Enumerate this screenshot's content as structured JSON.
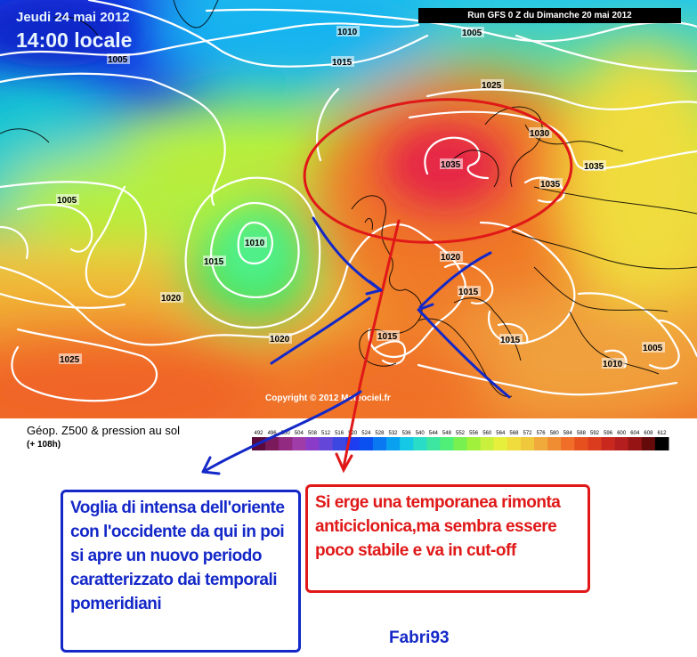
{
  "header": {
    "date": "Jeudi 24 mai 2012",
    "time": "14:00 locale",
    "run_banner": "Run GFS 0 Z du Dimanche 20 mai 2012"
  },
  "map": {
    "copyright": "Copyright © 2012 Meteociel.fr",
    "isobar_labels": [
      "1005",
      "1010",
      "1005",
      "1015",
      "1025",
      "1030",
      "1035",
      "1035",
      "1035",
      "1005",
      "1010",
      "1015",
      "1020",
      "1020",
      "1015",
      "1015",
      "1015",
      "1020",
      "1025",
      "1015",
      "1010",
      "1005"
    ]
  },
  "legend": {
    "title": "Géop. Z500 & pression au sol",
    "forecast_hour": "(+ 108h)",
    "scale_values": [
      "492",
      "496",
      "500",
      "504",
      "508",
      "512",
      "516",
      "520",
      "524",
      "528",
      "532",
      "536",
      "540",
      "544",
      "548",
      "552",
      "556",
      "560",
      "564",
      "568",
      "572",
      "576",
      "580",
      "584",
      "588",
      "592",
      "596",
      "600",
      "604",
      "608",
      "612"
    ],
    "scale_colors": [
      "#5a0a3a",
      "#7a1a5a",
      "#922a82",
      "#a03ca8",
      "#8a3cc8",
      "#6446d8",
      "#3c46e0",
      "#1e3cf0",
      "#0a50f0",
      "#0a78f0",
      "#0aa0f0",
      "#14c8e6",
      "#28dcc8",
      "#3ce6a0",
      "#50f078",
      "#78f050",
      "#a0f03c",
      "#c8f03c",
      "#e6f03c",
      "#f0dc3c",
      "#f0c83c",
      "#f0aa3c",
      "#f08c32",
      "#f06e28",
      "#e6501e",
      "#dc3c1e",
      "#c8281e",
      "#b41e1e",
      "#961414",
      "#640a0a",
      "#000000"
    ]
  },
  "annotations": {
    "blue_note": [
      "Voglia di intensa dell'oriente",
      "con l'occidente da qui in poi",
      "si apre un nuovo periodo",
      "caratterizzato dai temporali",
      "pomeridiani"
    ],
    "red_note": [
      "Si erge una temporanea rimonta",
      "anticiclonica,ma sembra essere",
      "poco stabile e va in cut-off"
    ],
    "signature": "Fabri93",
    "colors": {
      "blue": "#1428c8",
      "red": "#e01818"
    }
  }
}
